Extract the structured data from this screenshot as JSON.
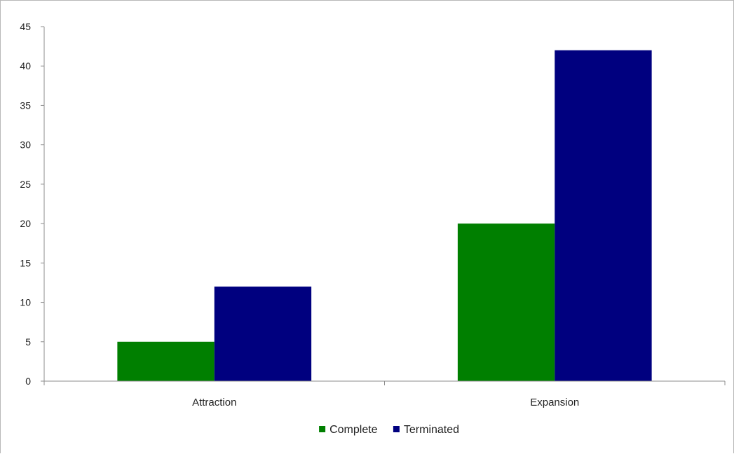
{
  "chart_data": {
    "type": "bar",
    "title": "",
    "xlabel": "",
    "ylabel": "",
    "categories": [
      "Attraction",
      "Expansion"
    ],
    "series": [
      {
        "name": "Complete",
        "values": [
          5,
          20
        ],
        "color": "#007f00"
      },
      {
        "name": "Terminated",
        "values": [
          12,
          42
        ],
        "color": "#00007f"
      }
    ],
    "ylim": [
      0,
      45
    ],
    "yticks": [
      0,
      5,
      10,
      15,
      20,
      25,
      30,
      35,
      40,
      45
    ],
    "grid": false,
    "legend_position": "bottom-center"
  }
}
